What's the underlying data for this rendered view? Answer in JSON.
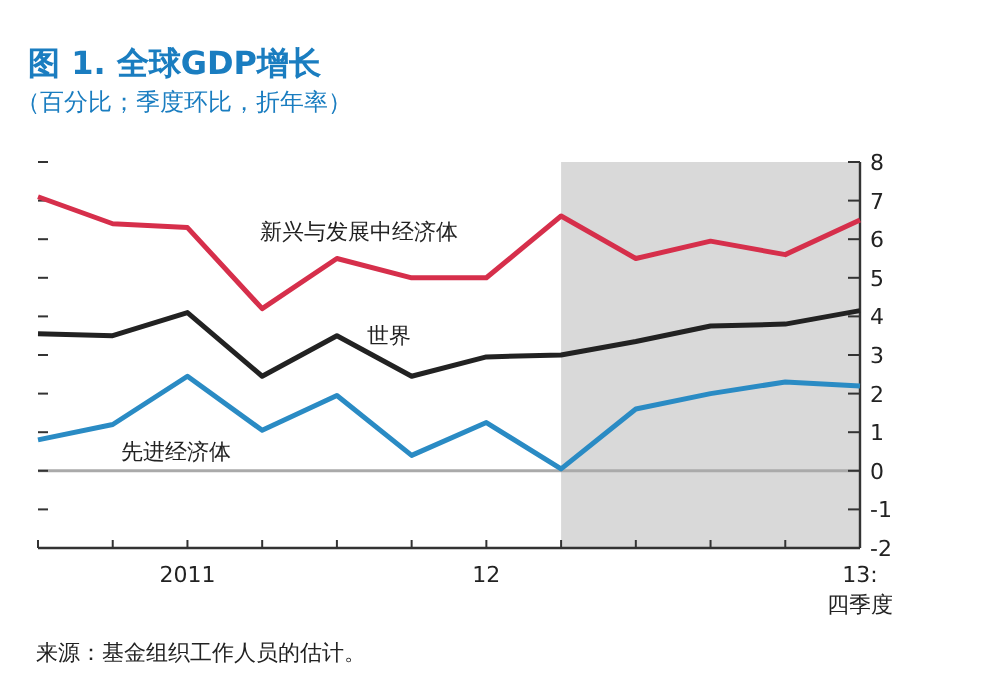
{
  "chart_data": {
    "type": "line",
    "title": "图 1. 全球GDP增长",
    "subtitle": "（百分比；季度环比，折年率）",
    "categories": [
      null,
      null,
      "2011",
      null,
      null,
      null,
      "12",
      null,
      null,
      null,
      null,
      "13:\n四季度"
    ],
    "series": [
      {
        "name": "新兴与发展中经济体",
        "color": "#d62f4b",
        "values": [
          7.1,
          6.4,
          6.3,
          4.2,
          5.5,
          5.0,
          5.0,
          6.6,
          5.5,
          5.95,
          5.6,
          6.5
        ]
      },
      {
        "name": "世界",
        "color": "#222222",
        "values": [
          3.55,
          3.5,
          4.1,
          2.45,
          3.5,
          2.45,
          2.95,
          3.0,
          3.35,
          3.75,
          3.8,
          4.15
        ]
      },
      {
        "name": "先进经济体",
        "color": "#2a8bc4",
        "values": [
          0.8,
          1.2,
          2.45,
          1.05,
          1.95,
          0.4,
          1.25,
          0.05,
          1.6,
          2.0,
          2.3,
          2.2
        ]
      }
    ],
    "ylim": [
      -2,
      8
    ],
    "yticks": [
      -2,
      -1,
      0,
      1,
      2,
      3,
      4,
      5,
      6,
      7,
      8
    ],
    "ref_lines": [
      {
        "axis": "y",
        "value": 0,
        "color": "#aaaaaa"
      }
    ],
    "grid": false,
    "marker": "none",
    "line_style": "solid",
    "annotations": [
      "来源：基金组织工作人员的估计。"
    ]
  }
}
